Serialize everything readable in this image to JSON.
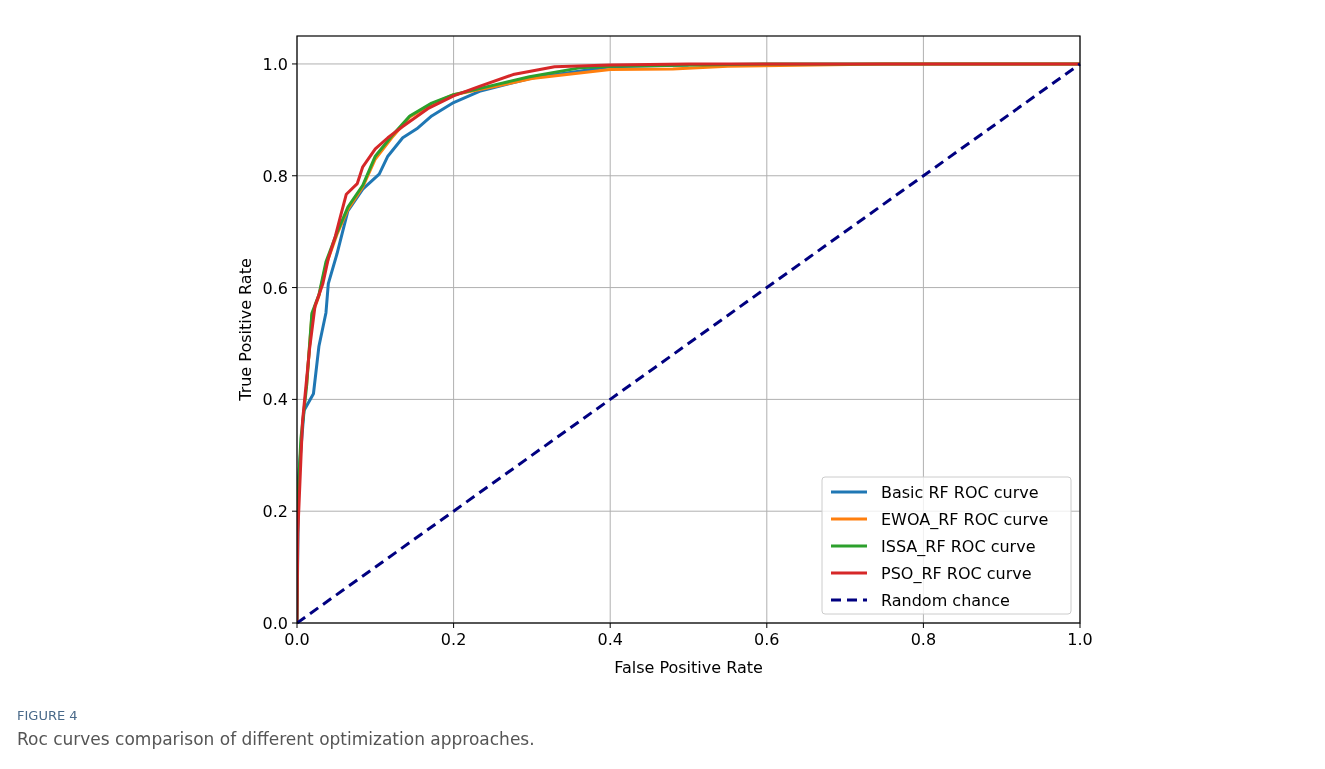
{
  "chart_data": {
    "type": "line",
    "xlabel": "False Positive Rate",
    "ylabel": "True Positive Rate",
    "xlim": [
      0,
      1
    ],
    "ylim": [
      0,
      1.05
    ],
    "xticks": [
      {
        "value": 0,
        "label": "0.0"
      },
      {
        "value": 0.2,
        "label": "0.2"
      },
      {
        "value": 0.4,
        "label": "0.4"
      },
      {
        "value": 0.6,
        "label": "0.6"
      },
      {
        "value": 0.8,
        "label": "0.8"
      },
      {
        "value": 1,
        "label": "1.0"
      }
    ],
    "yticks": [
      {
        "value": 0,
        "label": "0.0"
      },
      {
        "value": 0.2,
        "label": "0.2"
      },
      {
        "value": 0.4,
        "label": "0.4"
      },
      {
        "value": 0.6,
        "label": "0.6"
      },
      {
        "value": 0.8,
        "label": "0.8"
      },
      {
        "value": 1,
        "label": "1.0"
      }
    ],
    "grid": true,
    "legend": "bottom right",
    "line_style": "solid",
    "marker": "none",
    "series": [
      {
        "name": "Basic RF ROC curve",
        "color": "#1f77b4",
        "x": [
          0,
          0.002,
          0.009,
          0.021,
          0.028,
          0.037,
          0.04,
          0.051,
          0.065,
          0.084,
          0.105,
          0.116,
          0.135,
          0.153,
          0.172,
          0.2,
          0.233,
          0.3,
          0.4,
          0.5
        ],
        "values": [
          0,
          0.26,
          0.38,
          0.41,
          0.495,
          0.555,
          0.607,
          0.66,
          0.737,
          0.776,
          0.803,
          0.835,
          0.868,
          0.884,
          0.907,
          0.931,
          0.951,
          0.975,
          0.995,
          0.998
        ]
      },
      {
        "name": "EWOA_RF ROC curve",
        "color": "#ff7f0e",
        "x": [
          0.012,
          0.019,
          0.028,
          0.037,
          0.051,
          0.065,
          0.084,
          0.1,
          0.121,
          0.144,
          0.172,
          0.2,
          0.254,
          0.3,
          0.4,
          0.48,
          0.55,
          0.75,
          1
        ],
        "values": [
          0.42,
          0.55,
          0.585,
          0.64,
          0.695,
          0.74,
          0.78,
          0.83,
          0.868,
          0.905,
          0.928,
          0.945,
          0.96,
          0.974,
          0.99,
          0.991,
          0.996,
          1,
          1
        ]
      },
      {
        "name": "ISSA_RF ROC curve",
        "color": "#2ca02c",
        "x": [
          0,
          0.001,
          0.005,
          0.012,
          0.019,
          0.028,
          0.037,
          0.051,
          0.065,
          0.084,
          0.1,
          0.121,
          0.144,
          0.172,
          0.2,
          0.254,
          0.297,
          0.361,
          0.4,
          0.6,
          1
        ],
        "values": [
          0,
          0.22,
          0.33,
          0.42,
          0.554,
          0.587,
          0.646,
          0.698,
          0.744,
          0.783,
          0.835,
          0.871,
          0.907,
          0.93,
          0.945,
          0.963,
          0.977,
          0.993,
          0.996,
          1,
          1
        ]
      },
      {
        "name": "PSO_RF ROC curve",
        "color": "#d62728",
        "x": [
          0,
          0.001,
          0.007,
          0.016,
          0.023,
          0.033,
          0.04,
          0.049,
          0.056,
          0.063,
          0.077,
          0.084,
          0.1,
          0.116,
          0.135,
          0.167,
          0.2,
          0.233,
          0.276,
          0.329,
          0.4,
          0.5,
          1
        ],
        "values": [
          0,
          0.16,
          0.36,
          0.49,
          0.567,
          0.607,
          0.652,
          0.692,
          0.73,
          0.767,
          0.786,
          0.816,
          0.848,
          0.868,
          0.888,
          0.92,
          0.943,
          0.96,
          0.981,
          0.995,
          0.998,
          1,
          1
        ]
      },
      {
        "name": "Random chance",
        "color": "#000080",
        "line_style": "dashed",
        "x": [
          0,
          1
        ],
        "values": [
          0,
          1
        ]
      }
    ],
    "annotations": [
      "FIGURE 4",
      "Roc curves comparison of different optimization approaches."
    ]
  }
}
